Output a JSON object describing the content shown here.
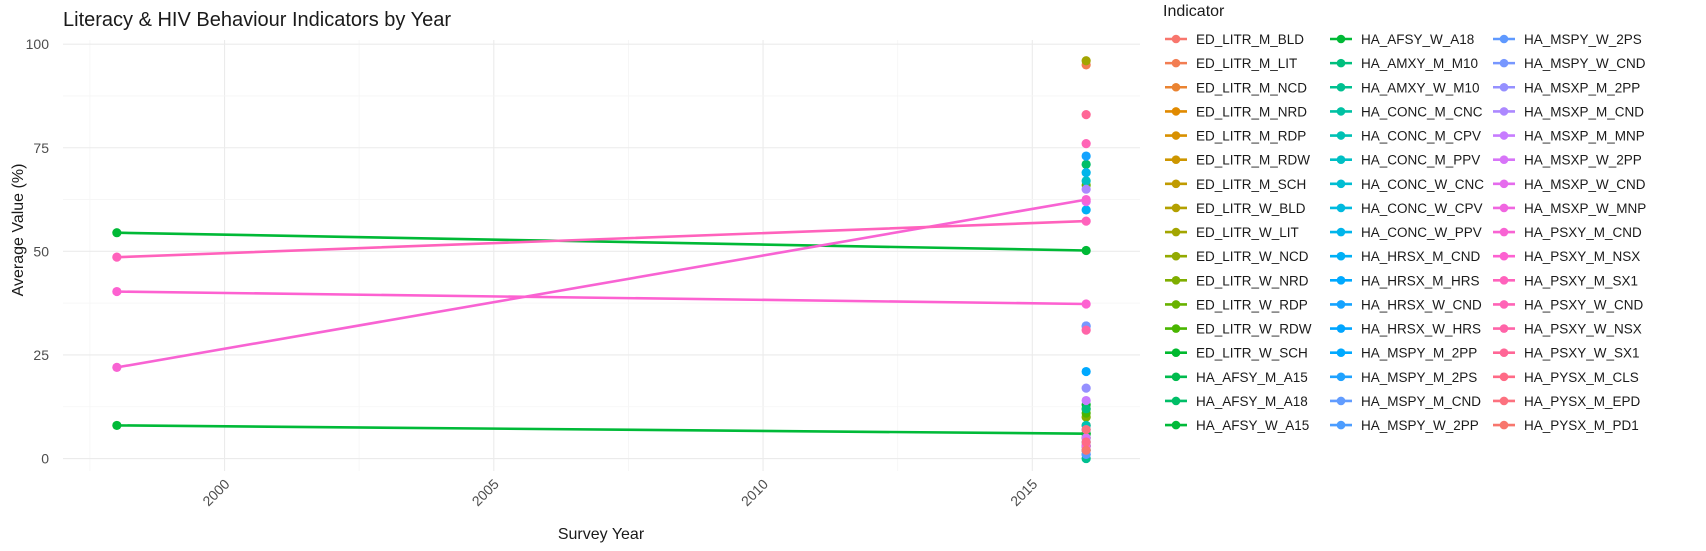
{
  "chart_data": {
    "type": "line",
    "title": "Literacy & HIV Behaviour Indicators by Year",
    "xlabel": "Survey Year",
    "ylabel": "Average Value (%)",
    "xlim": [
      1997,
      2017
    ],
    "ylim": [
      -3,
      101
    ],
    "x_ticks": [
      2000,
      2005,
      2010,
      2015
    ],
    "y_ticks": [
      0,
      25,
      50,
      75,
      100
    ],
    "legend_title": "Indicator",
    "legend_position": "right",
    "series": [
      {
        "name": "ED_LITR_M_BLD",
        "color": "#F8766D",
        "points": [
          [
            2016,
            4
          ]
        ]
      },
      {
        "name": "ED_LITR_M_LIT",
        "color": "#F27D52",
        "points": [
          [
            2016,
            95
          ]
        ]
      },
      {
        "name": "ED_LITR_M_NCD",
        "color": "#EA8331",
        "points": [
          [
            2016,
            3
          ]
        ]
      },
      {
        "name": "ED_LITR_M_NRD",
        "color": "#E18A00",
        "points": [
          [
            2016,
            2
          ]
        ]
      },
      {
        "name": "ED_LITR_M_RDP",
        "color": "#D89000",
        "points": [
          [
            2016,
            5
          ]
        ]
      },
      {
        "name": "ED_LITR_M_RDW",
        "color": "#CD9600",
        "points": [
          [
            2016,
            8
          ]
        ]
      },
      {
        "name": "ED_LITR_M_SCH",
        "color": "#C09B00",
        "points": [
          [
            2016,
            6
          ]
        ]
      },
      {
        "name": "ED_LITR_W_BLD",
        "color": "#B3A000",
        "points": [
          [
            2016,
            3
          ]
        ]
      },
      {
        "name": "ED_LITR_W_LIT",
        "color": "#A3A500",
        "points": [
          [
            2016,
            96
          ]
        ]
      },
      {
        "name": "ED_LITR_W_NCD",
        "color": "#93AA00",
        "points": [
          [
            2016,
            12
          ]
        ]
      },
      {
        "name": "ED_LITR_W_NRD",
        "color": "#7FAE00",
        "points": [
          [
            2016,
            10
          ]
        ]
      },
      {
        "name": "ED_LITR_W_RDP",
        "color": "#68B200",
        "points": [
          [
            2016,
            66
          ]
        ]
      },
      {
        "name": "ED_LITR_W_RDW",
        "color": "#49B600",
        "points": [
          [
            2016,
            11
          ]
        ]
      },
      {
        "name": "ED_LITR_W_SCH",
        "color": "#00B92E",
        "points": [
          [
            2016,
            13
          ]
        ]
      },
      {
        "name": "HA_AFSY_M_A15",
        "color": "#00BB4E",
        "points": [
          [
            2016,
            6
          ]
        ]
      },
      {
        "name": "HA_AFSY_M_A18",
        "color": "#00BE67",
        "points": [
          [
            2016,
            71
          ]
        ]
      },
      {
        "name": "HA_AFSY_W_A15",
        "color": "#00BA38",
        "points": [
          [
            1998,
            8
          ],
          [
            2016,
            6
          ]
        ]
      },
      {
        "name": "HA_AFSY_W_A18",
        "color": "#00B936",
        "points": [
          [
            1998,
            54.5
          ],
          [
            2016,
            50.2
          ]
        ]
      },
      {
        "name": "HA_AMXY_M_M10",
        "color": "#00BF7D",
        "points": [
          [
            2016,
            12
          ]
        ]
      },
      {
        "name": "HA_AMXY_W_M10",
        "color": "#00C090",
        "points": [
          [
            2016,
            0
          ]
        ]
      },
      {
        "name": "HA_CONC_M_CNC",
        "color": "#00C1A3",
        "points": [
          [
            2016,
            5
          ]
        ]
      },
      {
        "name": "HA_CONC_M_CPV",
        "color": "#00C1B4",
        "points": [
          [
            2016,
            8
          ]
        ]
      },
      {
        "name": "HA_CONC_M_PPV",
        "color": "#00BFC4",
        "points": [
          [
            2016,
            67
          ]
        ]
      },
      {
        "name": "HA_CONC_W_CNC",
        "color": "#00BDD2",
        "points": [
          [
            2016,
            2
          ]
        ]
      },
      {
        "name": "HA_CONC_W_CPV",
        "color": "#00BADF",
        "points": [
          [
            2016,
            4
          ]
        ]
      },
      {
        "name": "HA_CONC_W_PPV",
        "color": "#00B5EB",
        "points": [
          [
            2016,
            69
          ]
        ]
      },
      {
        "name": "HA_HRSX_M_CND",
        "color": "#00B0F6",
        "points": [
          [
            2016,
            60
          ]
        ]
      },
      {
        "name": "HA_HRSX_M_HRS",
        "color": "#00A9FF",
        "points": [
          [
            2016,
            21
          ]
        ]
      },
      {
        "name": "HA_HRSX_W_CND",
        "color": "#14A3FF",
        "points": [
          [
            2016,
            73
          ]
        ]
      },
      {
        "name": "HA_HRSX_W_HRS",
        "color": "#00A5FF",
        "points": [
          [
            2016,
            7
          ]
        ]
      },
      {
        "name": "HA_MSPY_M_2PP",
        "color": "#00A9FF",
        "points": [
          [
            2016,
            3
          ]
        ]
      },
      {
        "name": "HA_MSPY_M_2PS",
        "color": "#1FA2FF",
        "points": [
          [
            2016,
            1
          ]
        ]
      },
      {
        "name": "HA_MSPY_M_CND",
        "color": "#619CFF",
        "points": [
          [
            2016,
            32
          ]
        ]
      },
      {
        "name": "HA_MSPY_W_2PP",
        "color": "#4C9DFF",
        "points": [
          [
            2016,
            2
          ]
        ]
      },
      {
        "name": "HA_MSPY_W_2PS",
        "color": "#5F99FF",
        "points": [
          [
            2016,
            1
          ]
        ]
      },
      {
        "name": "HA_MSPY_W_CND",
        "color": "#7797FF",
        "points": [
          [
            2016,
            32
          ]
        ]
      },
      {
        "name": "HA_MSXP_M_2PP",
        "color": "#9590FF",
        "points": [
          [
            2016,
            17
          ]
        ]
      },
      {
        "name": "HA_MSXP_M_CND",
        "color": "#AC88FF",
        "points": [
          [
            2016,
            65
          ]
        ]
      },
      {
        "name": "HA_MSXP_M_MNP",
        "color": "#C77CFF",
        "points": [
          [
            2016,
            14
          ]
        ]
      },
      {
        "name": "HA_MSXP_W_2PP",
        "color": "#D774F8",
        "points": [
          [
            2016,
            5
          ]
        ]
      },
      {
        "name": "HA_MSXP_W_CND",
        "color": "#E56BED",
        "points": [
          [
            2016,
            62
          ]
        ]
      },
      {
        "name": "HA_MSXP_W_MNP",
        "color": "#F066E0",
        "points": [
          [
            2016,
            3
          ]
        ]
      },
      {
        "name": "HA_PSXY_M_CND",
        "color": "#F863D3",
        "points": [
          [
            1998,
            22
          ],
          [
            2016,
            62.5
          ]
        ]
      },
      {
        "name": "HA_PSXY_M_NSX",
        "color": "#FD61D1",
        "points": [
          [
            1998,
            40.3
          ],
          [
            2016,
            37.3
          ]
        ]
      },
      {
        "name": "HA_PSXY_M_SX1",
        "color": "#FF62BC",
        "points": [
          [
            1998,
            48.6
          ],
          [
            2016,
            57.3
          ]
        ]
      },
      {
        "name": "HA_PSXY_W_CND",
        "color": "#FF63B6",
        "points": [
          [
            2016,
            76
          ]
        ]
      },
      {
        "name": "HA_PSXY_W_NSX",
        "color": "#FF64A8",
        "points": [
          [
            2016,
            31
          ]
        ]
      },
      {
        "name": "HA_PSXY_W_SX1",
        "color": "#FF6696",
        "points": [
          [
            2016,
            83
          ]
        ]
      },
      {
        "name": "HA_PYSX_M_CLS",
        "color": "#FF6A86",
        "points": [
          [
            2016,
            4
          ]
        ]
      },
      {
        "name": "HA_PYSX_M_EPD",
        "color": "#FC717F",
        "points": [
          [
            2016,
            7
          ]
        ]
      },
      {
        "name": "HA_PYSX_M_PD1",
        "color": "#F8766D",
        "points": [
          [
            2016,
            2
          ]
        ]
      }
    ],
    "legend_order": [
      "ED_LITR_M_BLD",
      "ED_LITR_M_LIT",
      "ED_LITR_M_NCD",
      "ED_LITR_M_NRD",
      "ED_LITR_M_RDP",
      "ED_LITR_M_RDW",
      "ED_LITR_M_SCH",
      "ED_LITR_W_BLD",
      "ED_LITR_W_LIT",
      "ED_LITR_W_NCD",
      "ED_LITR_W_NRD",
      "ED_LITR_W_RDP",
      "ED_LITR_W_RDW",
      "ED_LITR_W_SCH",
      "HA_AFSY_M_A15",
      "HA_AFSY_M_A18",
      "HA_AFSY_W_A15",
      "HA_AFSY_W_A18",
      "HA_AMXY_M_M10",
      "HA_AMXY_W_M10",
      "HA_CONC_M_CNC",
      "HA_CONC_M_CPV",
      "HA_CONC_M_PPV",
      "HA_CONC_W_CNC",
      "HA_CONC_W_CPV",
      "HA_CONC_W_PPV",
      "HA_HRSX_M_CND",
      "HA_HRSX_M_HRS",
      "HA_HRSX_W_CND",
      "HA_HRSX_W_HRS",
      "HA_MSPY_M_2PP",
      "HA_MSPY_M_2PS",
      "HA_MSPY_M_CND",
      "HA_MSPY_W_2PP",
      "HA_MSPY_W_2PS",
      "HA_MSPY_W_CND",
      "HA_MSXP_M_2PP",
      "HA_MSXP_M_CND",
      "HA_MSXP_M_MNP",
      "HA_MSXP_W_2PP",
      "HA_MSXP_W_CND",
      "HA_MSXP_W_MNP",
      "HA_PSXY_M_CND",
      "HA_PSXY_M_NSX",
      "HA_PSXY_M_SX1",
      "HA_PSXY_W_CND",
      "HA_PSXY_W_NSX",
      "HA_PSXY_W_SX1",
      "HA_PYSX_M_CLS",
      "HA_PYSX_M_EPD",
      "HA_PYSX_M_PD1"
    ],
    "grid": true
  }
}
